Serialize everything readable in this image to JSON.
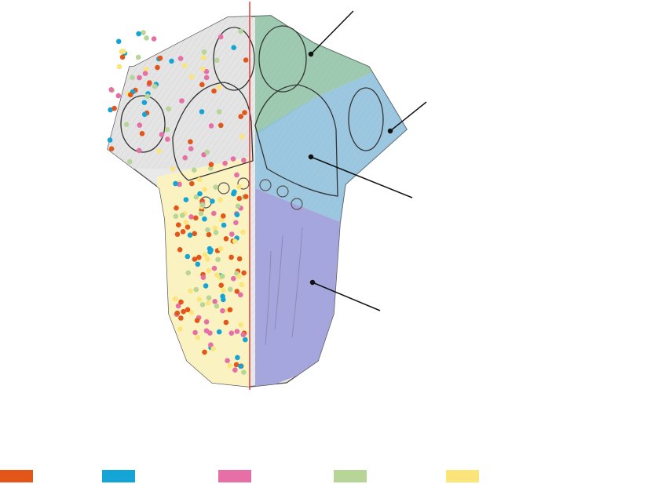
{
  "legend": [
    {
      "color": "#e2561a"
    },
    {
      "color": "#14a5d6"
    },
    {
      "color": "#e66fa6"
    },
    {
      "color": "#b7d596"
    },
    {
      "color": "#fbe57b"
    }
  ],
  "region_colors": {
    "green": "#8fc4a6",
    "blue": "#8ec1df",
    "purple": "#a6a6de",
    "yellow": "#fbf2c2",
    "midline": "#e2322b"
  }
}
